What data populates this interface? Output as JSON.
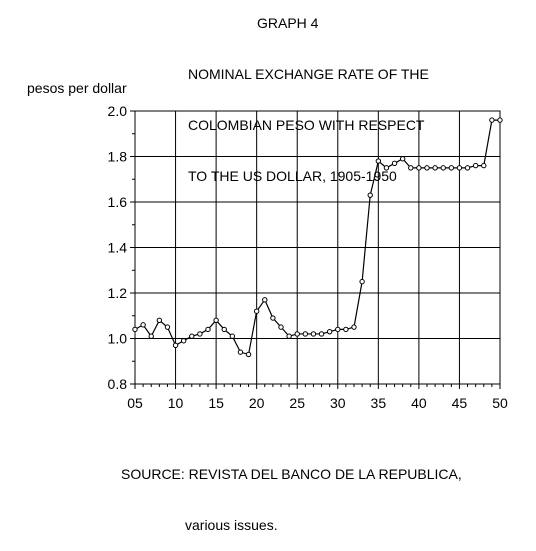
{
  "header": {
    "graph_number": "GRAPH 4",
    "title_lines": [
      "NOMINAL EXCHANGE RATE OF THE",
      "COLOMBIAN PESO WITH RESPECT",
      "TO THE US DOLLAR, 1905-1950"
    ]
  },
  "source": {
    "line1": "SOURCE: REVISTA DEL BANCO DE LA REPUBLICA,",
    "line2": "various issues."
  },
  "chart_data": {
    "type": "line",
    "title": "NOMINAL EXCHANGE RATE OF THE COLOMBIAN PESO WITH RESPECT TO THE US DOLLAR, 1905-1950",
    "xlabel": "",
    "ylabel": "pesos per dollar",
    "xlim": [
      5,
      50
    ],
    "ylim": [
      0.8,
      2.0
    ],
    "grid": true,
    "x_ticks": [
      5,
      10,
      15,
      20,
      25,
      30,
      35,
      40,
      45,
      50
    ],
    "x_tick_labels": [
      "05",
      "10",
      "15",
      "20",
      "25",
      "30",
      "35",
      "40",
      "45",
      "50"
    ],
    "y_ticks": [
      0.8,
      1.0,
      1.2,
      1.4,
      1.6,
      1.8,
      2.0
    ],
    "y_tick_labels": [
      "0.8",
      "1.0",
      "1.2",
      "1.4",
      "1.6",
      "1.8",
      "2.0"
    ],
    "x": [
      5,
      6,
      7,
      8,
      9,
      10,
      11,
      12,
      13,
      14,
      15,
      16,
      17,
      18,
      19,
      20,
      21,
      22,
      23,
      24,
      25,
      26,
      27,
      28,
      29,
      30,
      31,
      32,
      33,
      34,
      35,
      36,
      37,
      38,
      39,
      40,
      41,
      42,
      43,
      44,
      45,
      46,
      47,
      48,
      49,
      50
    ],
    "series": [
      {
        "values": [
          1.04,
          1.06,
          1.01,
          1.08,
          1.05,
          0.97,
          0.99,
          1.01,
          1.02,
          1.04,
          1.08,
          1.04,
          1.01,
          0.94,
          0.93,
          1.12,
          1.17,
          1.09,
          1.05,
          1.01,
          1.02,
          1.02,
          1.02,
          1.02,
          1.03,
          1.04,
          1.04,
          1.05,
          1.25,
          1.63,
          1.78,
          1.75,
          1.77,
          1.79,
          1.75,
          1.75,
          1.75,
          1.75,
          1.75,
          1.75,
          1.75,
          1.75,
          1.76,
          1.76,
          1.96,
          1.96
        ],
        "color": "#000000"
      }
    ]
  }
}
